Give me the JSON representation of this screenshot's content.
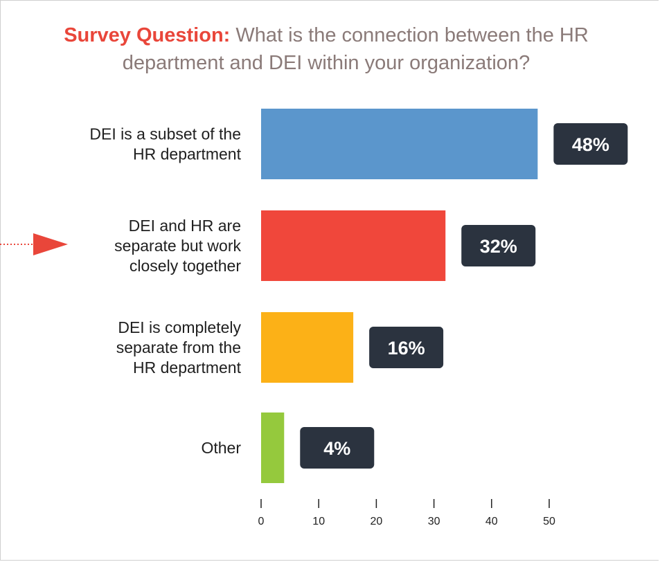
{
  "question": {
    "lead": "Survey Question:",
    "text": "What is the connection between the HR department and DEI within your organization?"
  },
  "colors": {
    "bar_blue": "#5b96cc",
    "bar_red": "#f0473b",
    "bar_yellow": "#fcb117",
    "bar_green": "#95c93d",
    "label_box": "#2b333f",
    "arrow": "#e9463a"
  },
  "chart_data": {
    "type": "bar",
    "orientation": "horizontal",
    "categories": [
      [
        "DEI is a subset of the",
        "HR department"
      ],
      [
        "DEI and HR are",
        "separate but work",
        "closely together"
      ],
      [
        "DEI is completely",
        "separate from the",
        "HR department"
      ],
      [
        "Other"
      ]
    ],
    "values": [
      48,
      32,
      16,
      4
    ],
    "value_labels": [
      "48%",
      "32%",
      "16%",
      "4%"
    ],
    "bar_colors": [
      "#5b96cc",
      "#f0473b",
      "#fcb117",
      "#95c93d"
    ],
    "xlim": [
      0,
      50
    ],
    "xticks": [
      0,
      10,
      20,
      30,
      40,
      50
    ],
    "grid": false,
    "highlight_index": 1
  }
}
